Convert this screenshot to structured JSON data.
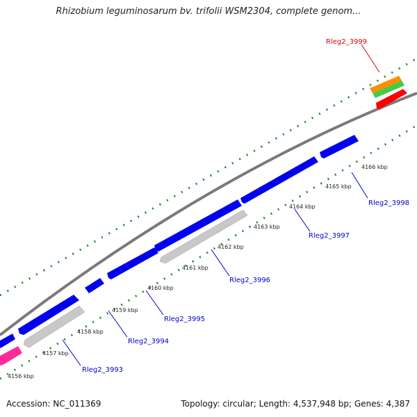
{
  "header": {
    "title": "Rhizobium leguminosarum bv. trifolii WSM2304, complete genom..."
  },
  "footer": {
    "accession": "Accession: NC_011369",
    "topology": "Topology: circular; Length: 4,537,948 bp; Genes: 4,387"
  },
  "kbp_ticks": [
    "4156 kbp",
    "4157 kbp",
    "4158 kbp",
    "4159 kbp",
    "4160 kbp",
    "4161 kbp",
    "4162 kbp",
    "4163 kbp",
    "4164 kbp",
    "4165 kbp",
    "4166 kbp"
  ],
  "gene_labels": [
    "Rleg2_3993",
    "Rleg2_3994",
    "Rleg2_3995",
    "Rleg2_3996",
    "Rleg2_3997",
    "Rleg2_3998",
    "Rleg2_3999"
  ],
  "colors": {
    "forward_gene": "#0000ee",
    "reverse_gene": "#c8c8c8",
    "rna_gene": "#ff0000",
    "highlight_orange": "#ff8c00",
    "highlight_green": "#44cc44",
    "pink_gene": "#ff2b9b",
    "backbone": "#808080",
    "tick": "#228b22",
    "label_blue": "#0000cc",
    "label_red": "#dd0000"
  }
}
